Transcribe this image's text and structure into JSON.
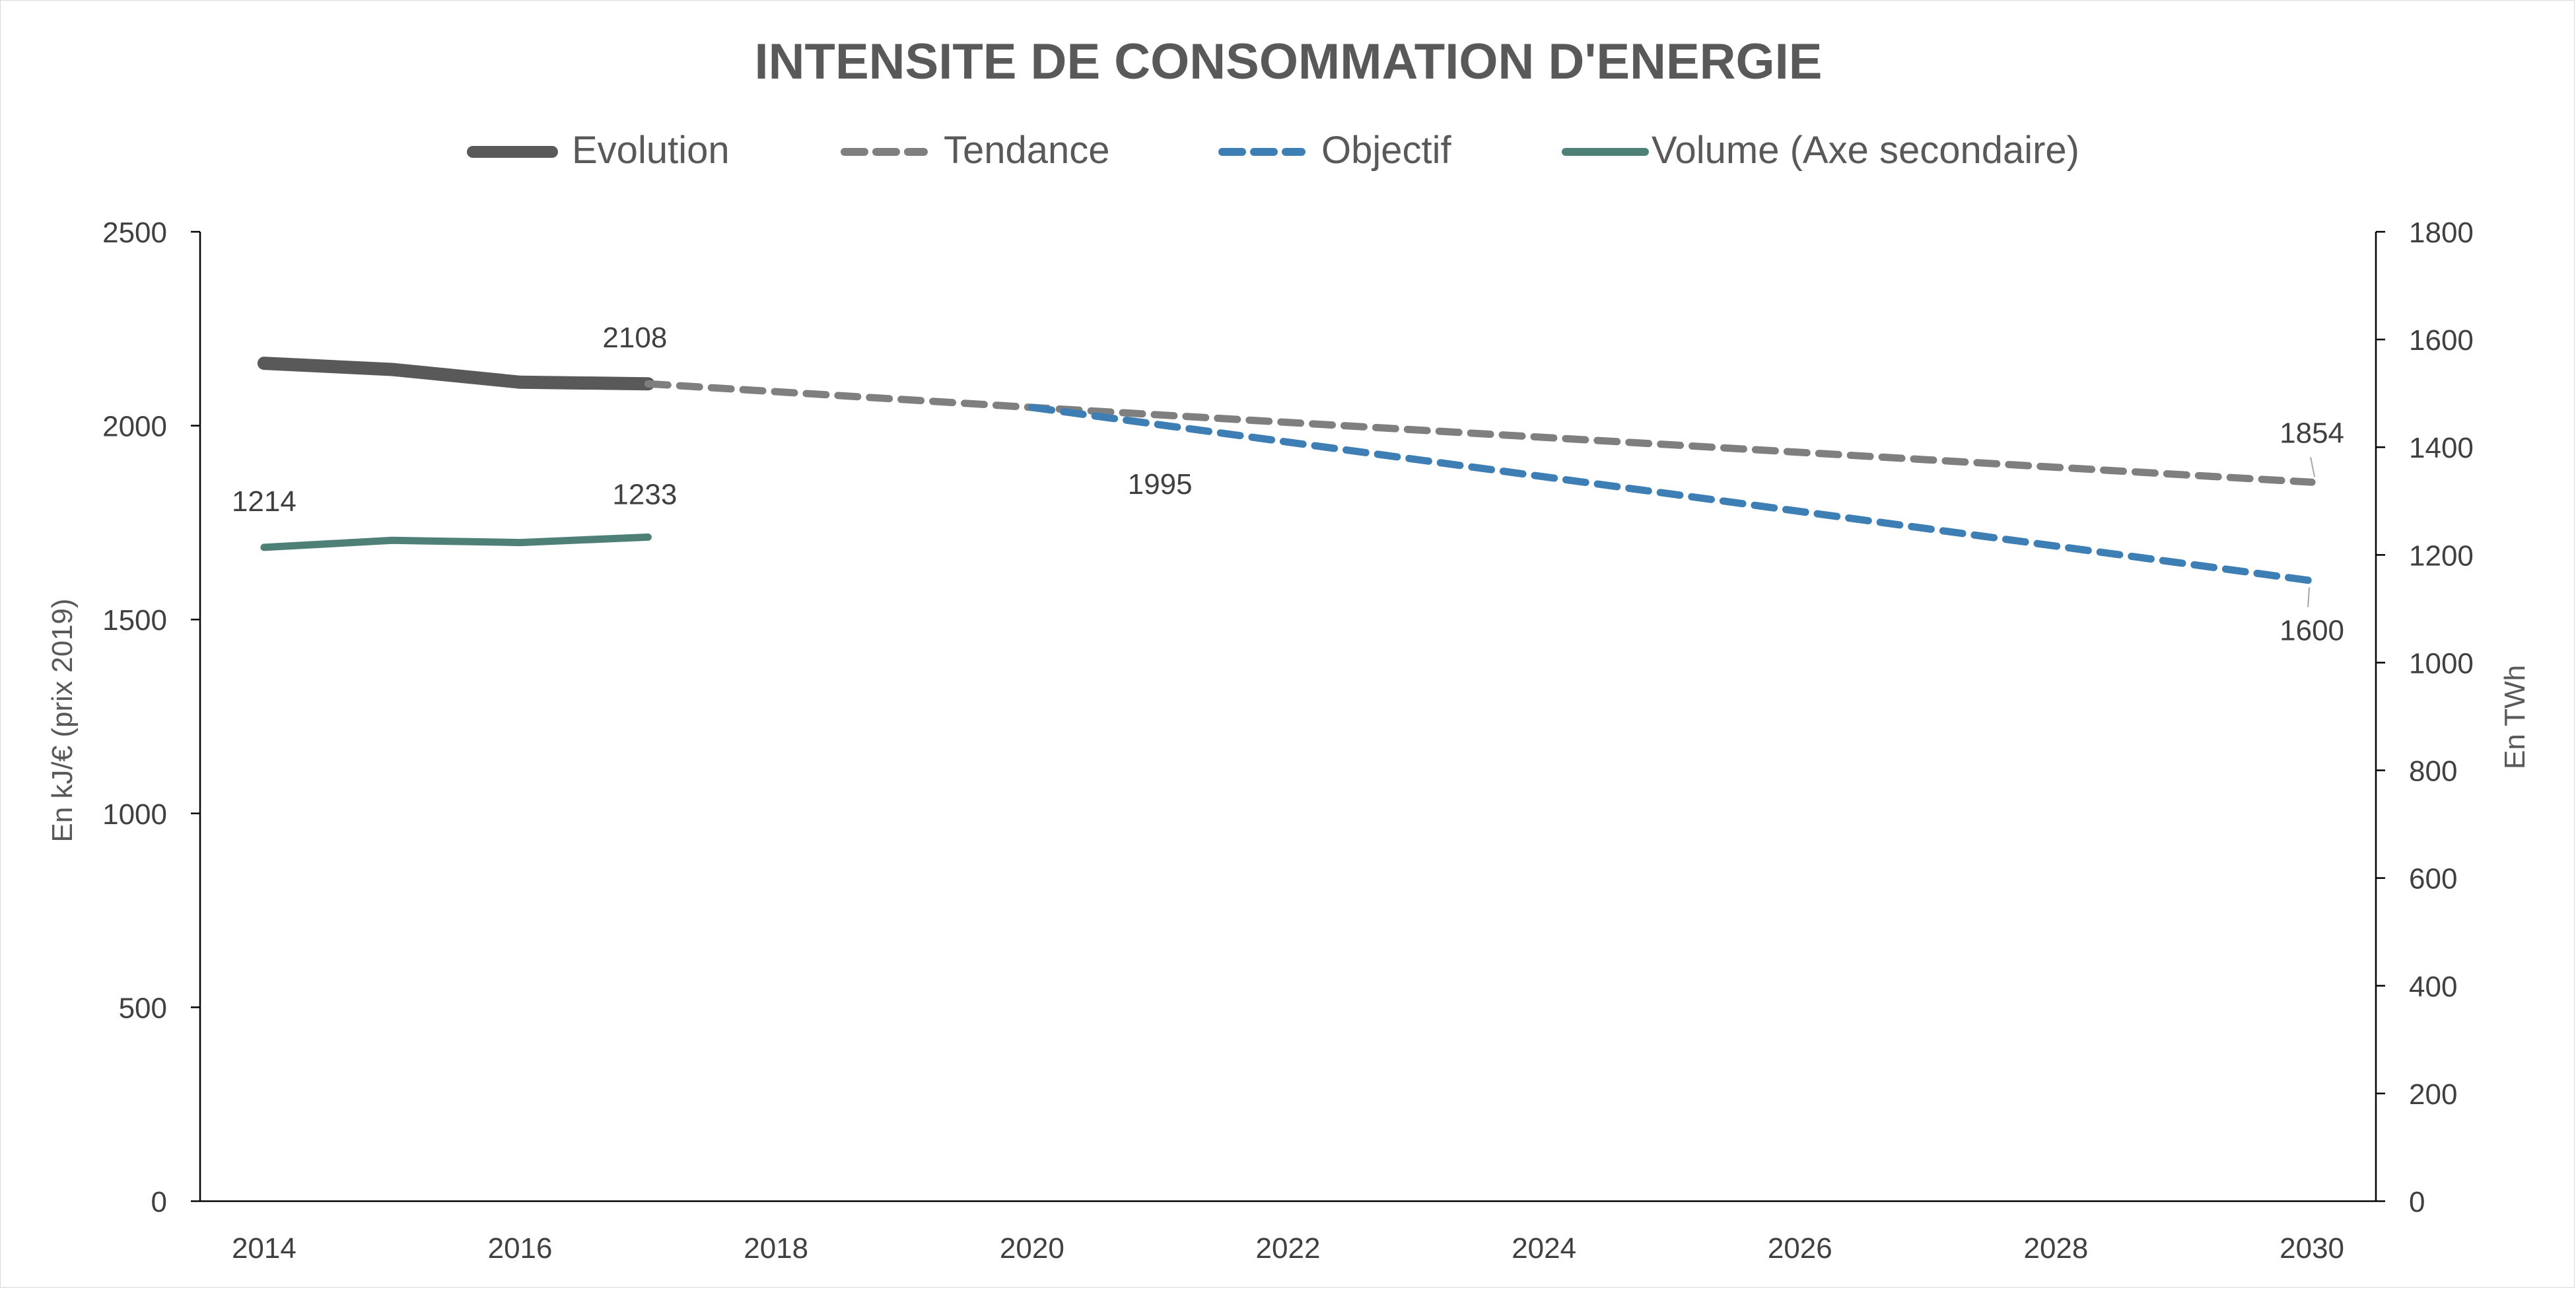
{
  "colors": {
    "evolution": "#595959",
    "tendance": "#7f7f7f",
    "objectif": "#3d7fb5",
    "volume": "#4f8077",
    "axis": "#000000",
    "text": "#595959",
    "label": "#404040"
  },
  "chart_data": {
    "type": "line",
    "title": "INTENSITE DE CONSOMMATION D'ENERGIE",
    "ylabel": "En kJ/€ (prix 2019)",
    "y2label": "En TWh",
    "xlim": [
      2013.5,
      2030.5
    ],
    "ylim": [
      0,
      2500
    ],
    "y2lim": [
      0,
      1800
    ],
    "x_ticks": [
      2014,
      2016,
      2018,
      2020,
      2022,
      2024,
      2026,
      2028,
      2030
    ],
    "y_ticks": [
      0,
      500,
      1000,
      1500,
      2000,
      2500
    ],
    "y2_ticks": [
      0,
      200,
      400,
      600,
      800,
      1000,
      1200,
      1400,
      1600,
      1800
    ],
    "grid": false,
    "legend_position": "top",
    "series": [
      {
        "name": "Evolution",
        "axis": "primary",
        "style": "solid",
        "x": [
          2014,
          2015,
          2016,
          2017
        ],
        "y": [
          2161,
          2145,
          2112,
          2108
        ]
      },
      {
        "name": "Tendance",
        "axis": "primary",
        "style": "dashed",
        "x": [
          2017,
          2020,
          2030
        ],
        "y": [
          2108,
          2047,
          1854
        ]
      },
      {
        "name": "Objectif",
        "axis": "primary",
        "style": "dashed",
        "x": [
          2020,
          2030
        ],
        "y": [
          2047,
          1600
        ]
      },
      {
        "name": "Volume (Axe secondaire)",
        "axis": "secondary",
        "style": "solid",
        "x": [
          2014,
          2015,
          2016,
          2017
        ],
        "y": [
          1214,
          1227,
          1223,
          1233
        ]
      }
    ],
    "data_labels": [
      {
        "text": "2108",
        "series": "Evolution",
        "x": 2017
      },
      {
        "text": "1995",
        "series": "Objectif",
        "x": 2021
      },
      {
        "text": "1854",
        "series": "Tendance",
        "x": 2030
      },
      {
        "text": "1600",
        "series": "Objectif",
        "x": 2030
      },
      {
        "text": "1214",
        "series": "Volume (Axe secondaire)",
        "x": 2014
      },
      {
        "text": "1233",
        "series": "Volume (Axe secondaire)",
        "x": 2017
      }
    ]
  }
}
